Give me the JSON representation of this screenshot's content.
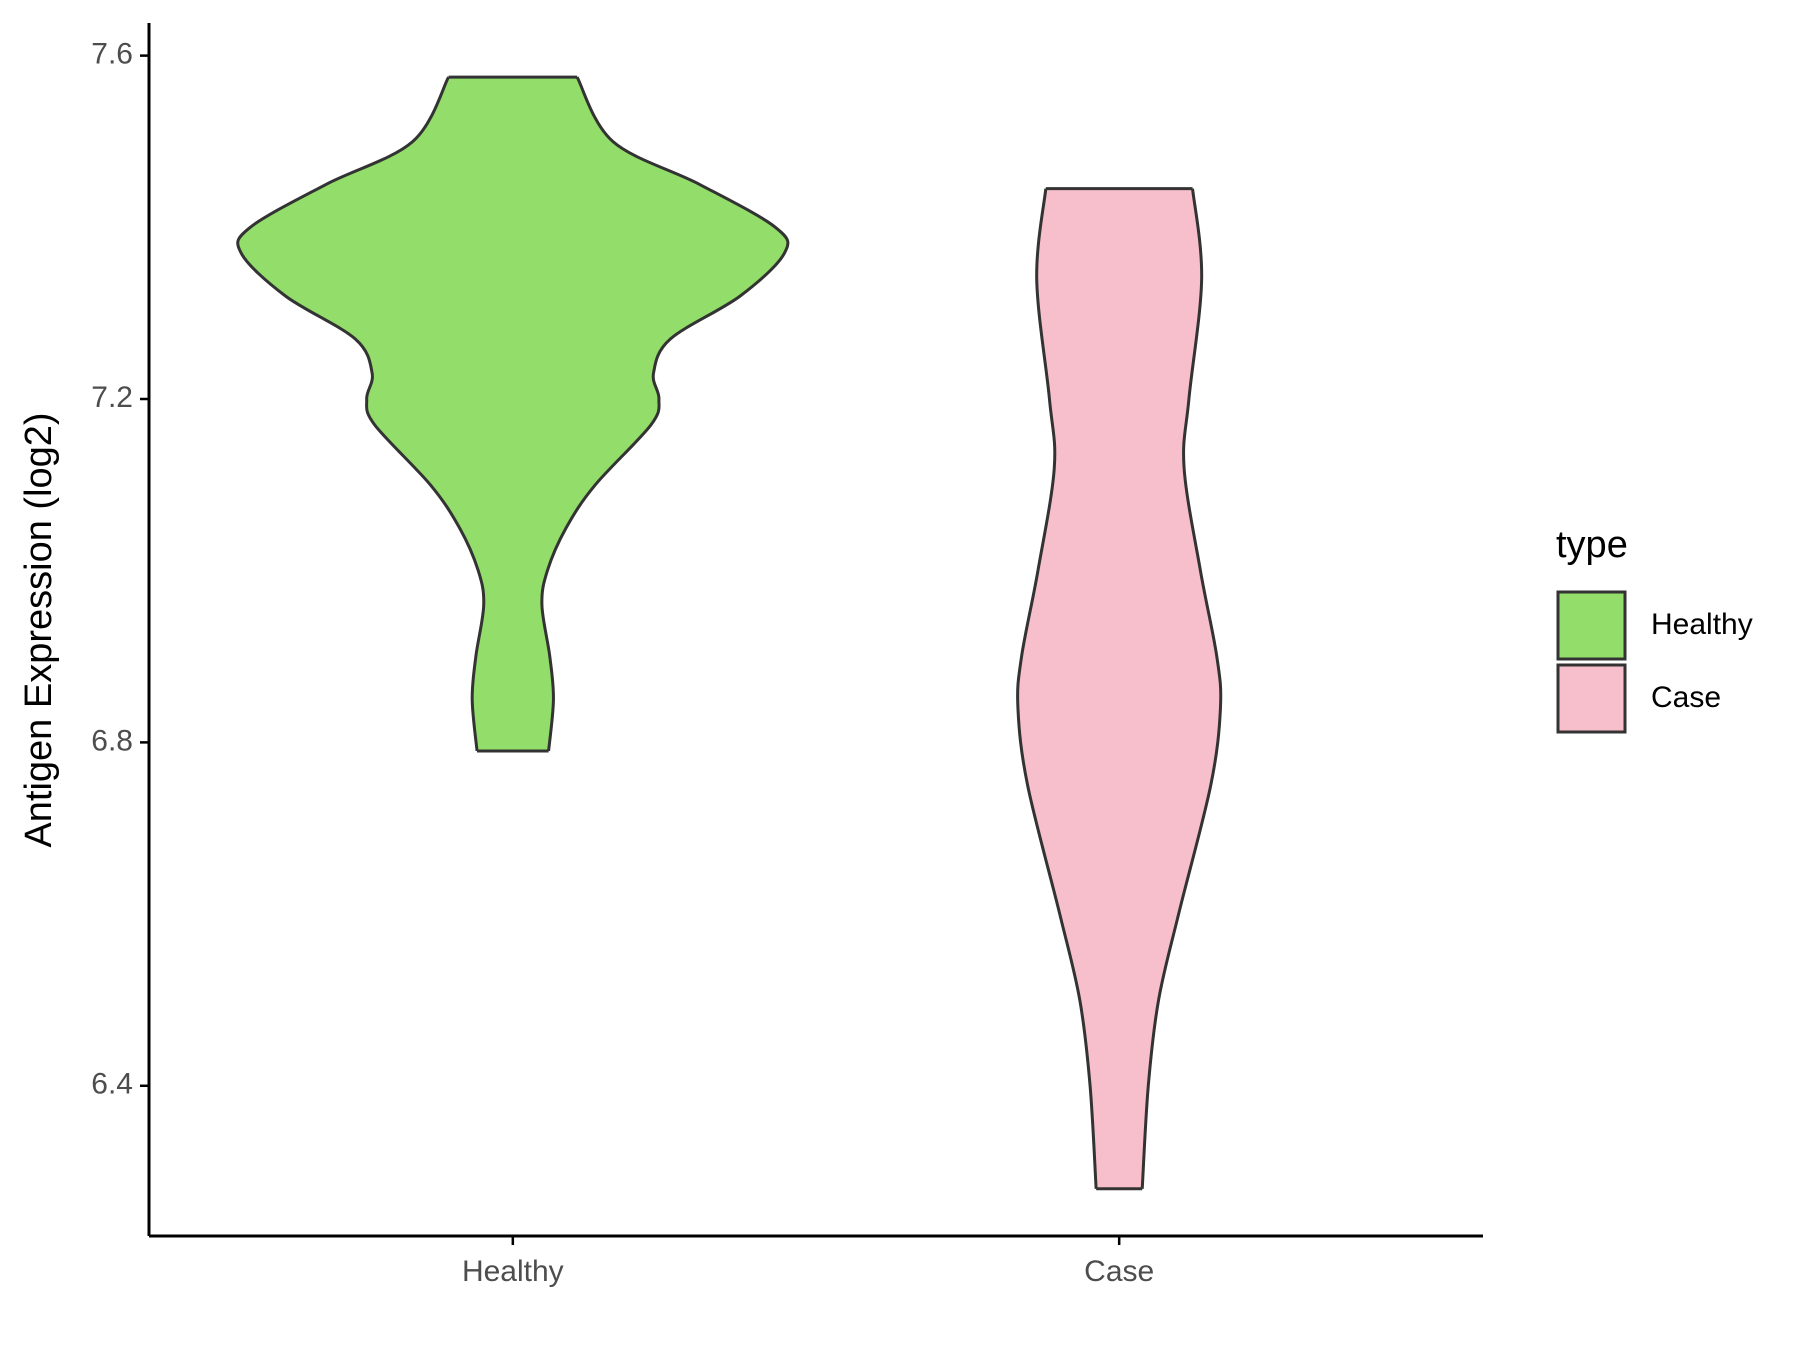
{
  "chart_data": {
    "type": "violin",
    "y_label": "Antigen Expression (log2)",
    "categories": [
      "Healthy",
      "Case"
    ],
    "ylim": [
      6.225,
      7.638
    ],
    "yticks": [
      6.4,
      6.8,
      7.2,
      7.6
    ],
    "legend_title": "type",
    "legend_position": "right",
    "series": [
      {
        "name": "Healthy",
        "color": "#93dd6a",
        "y": [
          7.575,
          7.5,
          7.45,
          7.4,
          7.37,
          7.32,
          7.27,
          7.23,
          7.2,
          7.17,
          7.1,
          7.05,
          7.0,
          6.96,
          6.9,
          6.85,
          6.79
        ],
        "half_width": [
          0.106,
          0.165,
          0.308,
          0.433,
          0.448,
          0.375,
          0.26,
          0.232,
          0.241,
          0.228,
          0.136,
          0.088,
          0.057,
          0.048,
          0.061,
          0.067,
          0.059
        ]
      },
      {
        "name": "Case",
        "color": "#f7bfcb",
        "y": [
          7.445,
          7.34,
          7.2,
          7.12,
          7.0,
          6.9,
          6.84,
          6.75,
          6.6,
          6.5,
          6.4,
          6.28
        ],
        "half_width": [
          0.121,
          0.136,
          0.115,
          0.107,
          0.134,
          0.161,
          0.167,
          0.151,
          0.098,
          0.065,
          0.048,
          0.038
        ]
      }
    ]
  }
}
